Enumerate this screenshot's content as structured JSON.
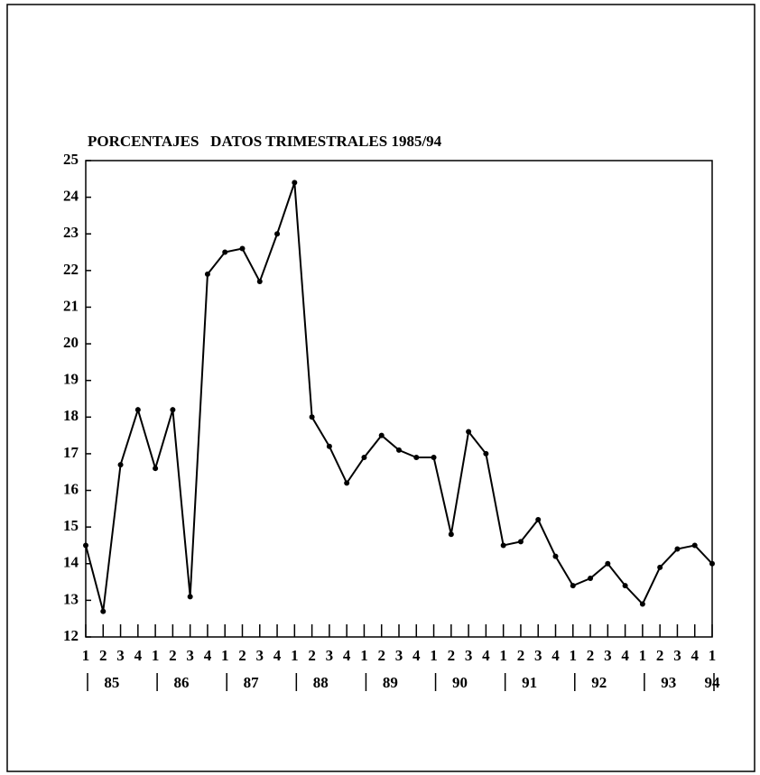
{
  "chart_data": {
    "type": "line",
    "title": "PORCENTAJES   DATOS TRIMESTRALES 1985/94",
    "categories": [
      "1",
      "2",
      "3",
      "4",
      "1",
      "2",
      "3",
      "4",
      "1",
      "2",
      "3",
      "4",
      "1",
      "2",
      "3",
      "4",
      "1",
      "2",
      "3",
      "4",
      "1",
      "2",
      "3",
      "4",
      "1",
      "2",
      "3",
      "4",
      "1",
      "2",
      "3",
      "4",
      "1",
      "2",
      "3",
      "4",
      "1"
    ],
    "years": [
      "85",
      "86",
      "87",
      "88",
      "89",
      "90",
      "91",
      "92",
      "93",
      "94"
    ],
    "series": [
      {
        "name": null,
        "color": "#000000",
        "values": [
          14.5,
          12.7,
          16.7,
          18.2,
          16.6,
          18.2,
          13.1,
          21.9,
          22.5,
          22.6,
          21.7,
          23.0,
          24.4,
          18.0,
          17.2,
          16.2,
          16.9,
          17.5,
          17.1,
          16.9,
          16.9,
          14.8,
          17.6,
          17.0,
          14.5,
          14.6,
          15.2,
          14.2,
          13.4,
          13.6,
          14.0,
          13.4,
          12.9,
          13.9,
          14.4,
          14.5,
          14.0
        ]
      }
    ],
    "ylim": [
      12,
      25
    ],
    "yticks": [
      12,
      13,
      14,
      15,
      16,
      17,
      18,
      19,
      20,
      21,
      22,
      23,
      24,
      25
    ],
    "grid": false
  }
}
